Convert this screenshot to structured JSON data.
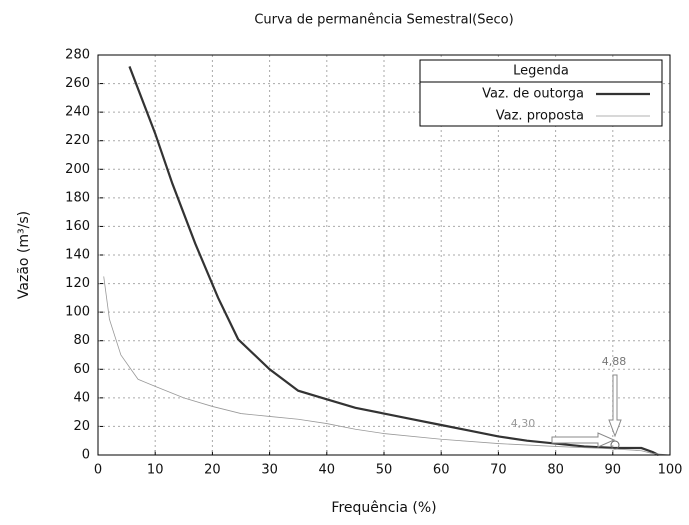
{
  "chart_data": {
    "type": "line",
    "title": "Curva de permanência Semestral(Seco)",
    "x_label": "Frequência (%)",
    "y_label": "Vazão (m³/s)",
    "xlim": [
      0,
      100
    ],
    "xticks": [
      0,
      10,
      20,
      30,
      40,
      50,
      60,
      70,
      80,
      90,
      100
    ],
    "ylim": [
      0,
      280
    ],
    "yticks": [
      0,
      20,
      40,
      60,
      80,
      100,
      120,
      140,
      160,
      180,
      200,
      220,
      240,
      260,
      280
    ],
    "grid": true,
    "legend_title": "Legenda",
    "legend_position": "upper right",
    "series": [
      {
        "name": "Vaz. de outorga",
        "color": "#333333",
        "x": [
          5.5,
          10,
          13,
          17,
          21,
          24.5,
          30,
          35,
          40,
          45,
          50,
          55,
          60,
          65,
          70,
          75,
          80,
          85,
          90,
          95,
          97,
          98
        ],
        "values": [
          272,
          225,
          190,
          148,
          110,
          81,
          60,
          45,
          39,
          33,
          29,
          25,
          21,
          17,
          13,
          10,
          8,
          6,
          5,
          4.88,
          2,
          0
        ]
      },
      {
        "name": "Vaz. proposta",
        "color": "#999999",
        "x": [
          1,
          2,
          4,
          7,
          10,
          15,
          20,
          25,
          30,
          35,
          40,
          45,
          50,
          60,
          70,
          80,
          90,
          95,
          97,
          100
        ],
        "values": [
          125,
          95,
          70,
          53,
          48,
          40,
          34,
          29,
          27,
          25,
          22,
          18,
          15,
          11,
          8,
          6,
          4.3,
          3,
          1,
          0
        ]
      }
    ],
    "annotations": [
      "4,88",
      "4,30"
    ]
  }
}
